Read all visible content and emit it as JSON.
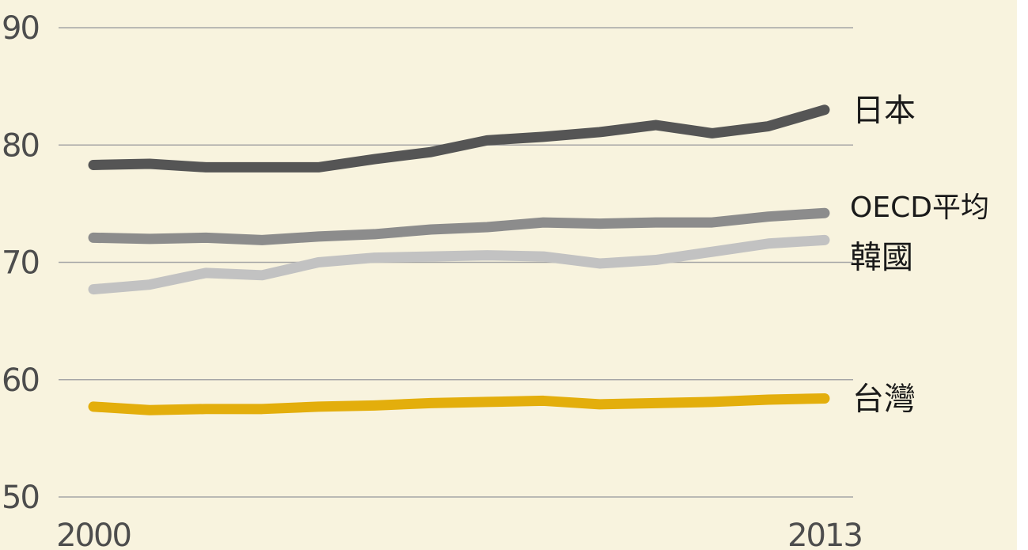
{
  "chart_data": {
    "type": "line",
    "x": [
      2000,
      2001,
      2002,
      2003,
      2004,
      2005,
      2006,
      2007,
      2008,
      2009,
      2010,
      2011,
      2012,
      2013
    ],
    "x_tick_labels": [
      "2000",
      "2013"
    ],
    "ylim": [
      50,
      90
    ],
    "y_ticks": [
      50,
      60,
      70,
      80,
      90
    ],
    "grid": true,
    "series": [
      {
        "name": "日本",
        "color": "#555555",
        "values": [
          78.3,
          78.4,
          78.1,
          78.1,
          78.1,
          78.8,
          79.4,
          80.4,
          80.7,
          81.1,
          81.7,
          81.0,
          81.6,
          83.0
        ]
      },
      {
        "name": "OECD平均",
        "color": "#8c8c8c",
        "values": [
          72.1,
          72.0,
          72.1,
          71.9,
          72.2,
          72.4,
          72.8,
          73.0,
          73.4,
          73.3,
          73.4,
          73.4,
          73.9,
          74.2
        ]
      },
      {
        "name": "韓國",
        "color": "#c2c2c2",
        "values": [
          67.7,
          68.1,
          69.1,
          68.9,
          70.0,
          70.4,
          70.5,
          70.6,
          70.5,
          69.9,
          70.2,
          70.9,
          71.6,
          71.9
        ]
      },
      {
        "name": "台灣",
        "color": "#e3ae0c",
        "values": [
          57.7,
          57.4,
          57.5,
          57.5,
          57.7,
          57.8,
          58.0,
          58.1,
          58.2,
          57.9,
          58.0,
          58.1,
          58.3,
          58.4
        ]
      }
    ]
  }
}
